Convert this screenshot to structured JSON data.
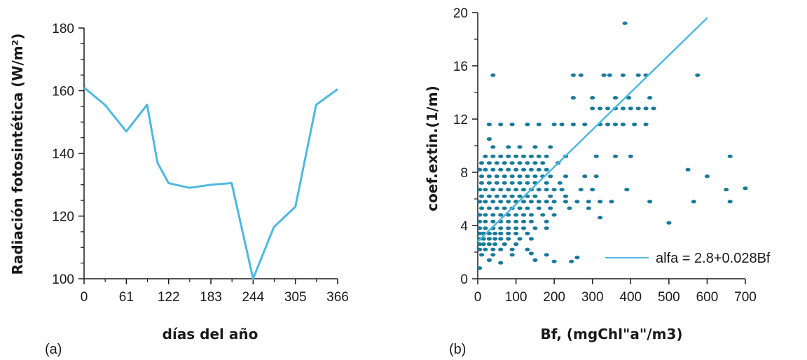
{
  "colors": {
    "line": "#4fb8e0",
    "points": "#1a7a99",
    "fit": "#4fb8e0",
    "axis": "#1a1a1a"
  },
  "chart_data": [
    {
      "type": "line",
      "panel_label": "(a)",
      "xlabel": "días del año",
      "ylabel": "Radiación fotosintética (W/m²)",
      "xlim": [
        0,
        366
      ],
      "ylim": [
        100,
        180
      ],
      "xticks": [
        0,
        61,
        122,
        183,
        244,
        305,
        366
      ],
      "yticks": [
        100,
        120,
        140,
        160,
        180
      ],
      "series": [
        {
          "x": [
            0,
            30,
            61,
            91,
            106,
            122,
            152,
            183,
            213,
            244,
            274,
            305,
            335,
            366
          ],
          "y": [
            161,
            155.5,
            147,
            155.5,
            137,
            130.5,
            129,
            130,
            130.5,
            100,
            116.5,
            123,
            155.5,
            160.5
          ]
        }
      ]
    },
    {
      "type": "scatter",
      "panel_label": "(b)",
      "xlabel": "Bf, (mgChl\"a\"/m3)",
      "ylabel": "coef.extin.(1/m)",
      "xlim": [
        0,
        700
      ],
      "ylim": [
        0,
        20
      ],
      "xticks": [
        0,
        100,
        200,
        300,
        400,
        500,
        600,
        700
      ],
      "yticks": [
        0,
        4,
        8,
        12,
        16,
        20
      ],
      "fit": {
        "label": "alfa = 2.8+0.028Bf",
        "intercept": 2.8,
        "slope": 0.028,
        "x_range": [
          0,
          600
        ]
      },
      "points": [
        [
          385,
          19.2
        ],
        [
          40,
          15.3
        ],
        [
          250,
          15.3
        ],
        [
          270,
          15.3
        ],
        [
          330,
          15.3
        ],
        [
          345,
          15.3
        ],
        [
          380,
          15.3
        ],
        [
          420,
          15.3
        ],
        [
          440,
          15.3
        ],
        [
          575,
          15.3
        ],
        [
          250,
          13.6
        ],
        [
          300,
          13.6
        ],
        [
          360,
          13.6
        ],
        [
          395,
          13.6
        ],
        [
          450,
          13.6
        ],
        [
          300,
          12.8
        ],
        [
          320,
          12.8
        ],
        [
          340,
          12.8
        ],
        [
          360,
          12.8
        ],
        [
          380,
          12.8
        ],
        [
          400,
          12.8
        ],
        [
          420,
          12.8
        ],
        [
          440,
          12.8
        ],
        [
          460,
          12.8
        ],
        [
          30,
          11.6
        ],
        [
          60,
          11.6
        ],
        [
          90,
          11.6
        ],
        [
          130,
          11.6
        ],
        [
          160,
          11.6
        ],
        [
          200,
          11.6
        ],
        [
          220,
          11.6
        ],
        [
          250,
          11.6
        ],
        [
          280,
          11.6
        ],
        [
          320,
          11.6
        ],
        [
          340,
          11.6
        ],
        [
          360,
          11.6
        ],
        [
          380,
          11.6
        ],
        [
          410,
          11.6
        ],
        [
          440,
          11.6
        ],
        [
          30,
          10.5
        ],
        [
          40,
          9.9
        ],
        [
          80,
          9.9
        ],
        [
          110,
          9.9
        ],
        [
          150,
          9.9
        ],
        [
          190,
          9.9
        ],
        [
          20,
          9.2
        ],
        [
          40,
          9.2
        ],
        [
          60,
          9.2
        ],
        [
          80,
          9.2
        ],
        [
          100,
          9.2
        ],
        [
          120,
          9.2
        ],
        [
          140,
          9.2
        ],
        [
          160,
          9.2
        ],
        [
          180,
          9.2
        ],
        [
          230,
          9.2
        ],
        [
          310,
          9.2
        ],
        [
          360,
          9.2
        ],
        [
          400,
          9.2
        ],
        [
          660,
          9.2
        ],
        [
          10,
          8.7
        ],
        [
          30,
          8.7
        ],
        [
          50,
          8.7
        ],
        [
          70,
          8.7
        ],
        [
          90,
          8.7
        ],
        [
          110,
          8.7
        ],
        [
          130,
          8.7
        ],
        [
          150,
          8.7
        ],
        [
          170,
          8.7
        ],
        [
          210,
          8.7
        ],
        [
          5,
          8.2
        ],
        [
          20,
          8.2
        ],
        [
          40,
          8.2
        ],
        [
          60,
          8.2
        ],
        [
          80,
          8.2
        ],
        [
          100,
          8.2
        ],
        [
          120,
          8.2
        ],
        [
          140,
          8.2
        ],
        [
          160,
          8.2
        ],
        [
          180,
          8.2
        ],
        [
          550,
          8.2
        ],
        [
          10,
          7.7
        ],
        [
          30,
          7.7
        ],
        [
          50,
          7.7
        ],
        [
          70,
          7.7
        ],
        [
          90,
          7.7
        ],
        [
          110,
          7.7
        ],
        [
          130,
          7.7
        ],
        [
          150,
          7.7
        ],
        [
          170,
          7.7
        ],
        [
          190,
          7.7
        ],
        [
          230,
          7.7
        ],
        [
          280,
          7.7
        ],
        [
          310,
          7.7
        ],
        [
          600,
          7.7
        ],
        [
          10,
          7.2
        ],
        [
          30,
          7.2
        ],
        [
          50,
          7.2
        ],
        [
          70,
          7.2
        ],
        [
          90,
          7.2
        ],
        [
          110,
          7.2
        ],
        [
          130,
          7.2
        ],
        [
          150,
          7.2
        ],
        [
          180,
          7.2
        ],
        [
          215,
          7.2
        ],
        [
          5,
          6.7
        ],
        [
          20,
          6.7
        ],
        [
          40,
          6.7
        ],
        [
          60,
          6.7
        ],
        [
          80,
          6.7
        ],
        [
          100,
          6.7
        ],
        [
          120,
          6.7
        ],
        [
          140,
          6.7
        ],
        [
          160,
          6.7
        ],
        [
          180,
          6.7
        ],
        [
          200,
          6.7
        ],
        [
          220,
          6.7
        ],
        [
          270,
          6.7
        ],
        [
          300,
          6.7
        ],
        [
          390,
          6.7
        ],
        [
          650,
          6.7
        ],
        [
          700,
          6.8
        ],
        [
          10,
          6.2
        ],
        [
          30,
          6.2
        ],
        [
          50,
          6.2
        ],
        [
          70,
          6.2
        ],
        [
          90,
          6.2
        ],
        [
          110,
          6.2
        ],
        [
          130,
          6.2
        ],
        [
          150,
          6.2
        ],
        [
          190,
          6.2
        ],
        [
          230,
          6.2
        ],
        [
          5,
          5.8
        ],
        [
          20,
          5.8
        ],
        [
          40,
          5.8
        ],
        [
          60,
          5.8
        ],
        [
          80,
          5.8
        ],
        [
          100,
          5.8
        ],
        [
          120,
          5.8
        ],
        [
          140,
          5.8
        ],
        [
          160,
          5.8
        ],
        [
          180,
          5.8
        ],
        [
          200,
          5.8
        ],
        [
          230,
          5.8
        ],
        [
          260,
          5.8
        ],
        [
          290,
          5.8
        ],
        [
          320,
          5.8
        ],
        [
          350,
          5.8
        ],
        [
          450,
          5.8
        ],
        [
          565,
          5.8
        ],
        [
          660,
          5.8
        ],
        [
          10,
          5.3
        ],
        [
          30,
          5.3
        ],
        [
          50,
          5.3
        ],
        [
          70,
          5.3
        ],
        [
          90,
          5.3
        ],
        [
          110,
          5.3
        ],
        [
          130,
          5.3
        ],
        [
          160,
          5.3
        ],
        [
          190,
          5.3
        ],
        [
          240,
          5.3
        ],
        [
          290,
          5.3
        ],
        [
          5,
          4.8
        ],
        [
          20,
          4.8
        ],
        [
          40,
          4.8
        ],
        [
          60,
          4.8
        ],
        [
          80,
          4.8
        ],
        [
          100,
          4.8
        ],
        [
          120,
          4.8
        ],
        [
          140,
          4.8
        ],
        [
          170,
          4.8
        ],
        [
          200,
          4.8
        ],
        [
          320,
          4.6
        ],
        [
          5,
          4.3
        ],
        [
          20,
          4.3
        ],
        [
          40,
          4.3
        ],
        [
          60,
          4.3
        ],
        [
          80,
          4.3
        ],
        [
          100,
          4.3
        ],
        [
          120,
          4.3
        ],
        [
          140,
          4.3
        ],
        [
          180,
          4.3
        ],
        [
          500,
          4.2
        ],
        [
          5,
          3.8
        ],
        [
          20,
          3.8
        ],
        [
          40,
          3.8
        ],
        [
          60,
          3.8
        ],
        [
          80,
          3.8
        ],
        [
          100,
          3.8
        ],
        [
          120,
          3.8
        ],
        [
          150,
          3.8
        ],
        [
          180,
          3.8
        ],
        [
          5,
          3.4
        ],
        [
          15,
          3.4
        ],
        [
          30,
          3.4
        ],
        [
          45,
          3.4
        ],
        [
          60,
          3.4
        ],
        [
          80,
          3.4
        ],
        [
          100,
          3.4
        ],
        [
          130,
          3.4
        ],
        [
          5,
          3.0
        ],
        [
          15,
          3.0
        ],
        [
          30,
          3.0
        ],
        [
          45,
          3.0
        ],
        [
          60,
          3.0
        ],
        [
          80,
          3.0
        ],
        [
          110,
          3.0
        ],
        [
          140,
          3.0
        ],
        [
          5,
          2.6
        ],
        [
          15,
          2.6
        ],
        [
          30,
          2.6
        ],
        [
          45,
          2.6
        ],
        [
          70,
          2.6
        ],
        [
          100,
          2.6
        ],
        [
          5,
          2.2
        ],
        [
          20,
          2.2
        ],
        [
          40,
          2.2
        ],
        [
          60,
          2.2
        ],
        [
          90,
          2.2
        ],
        [
          130,
          2.2
        ],
        [
          10,
          1.8
        ],
        [
          40,
          1.8
        ],
        [
          90,
          1.8
        ],
        [
          140,
          1.9
        ],
        [
          180,
          1.8
        ],
        [
          260,
          1.6
        ],
        [
          30,
          1.4
        ],
        [
          60,
          1.2
        ],
        [
          150,
          1.4
        ],
        [
          200,
          1.3
        ],
        [
          245,
          1.3
        ],
        [
          5,
          0.8
        ]
      ]
    }
  ]
}
